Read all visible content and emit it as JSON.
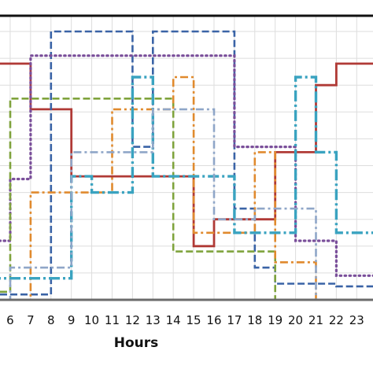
{
  "chart_data": {
    "type": "line",
    "step": "post",
    "xlabel": "Hours",
    "ylabel": "",
    "title": "",
    "grid": true,
    "x_ticks": [
      6,
      7,
      8,
      9,
      10,
      11,
      12,
      13,
      14,
      15,
      16,
      17,
      18,
      19,
      20,
      21,
      22,
      23
    ],
    "xlim": [
      5.5,
      23.8
    ],
    "ylim": [
      0,
      1
    ],
    "series": [
      {
        "color": "#b03a36",
        "style": "solid",
        "x": [
          5,
          7,
          7,
          9,
          9,
          15,
          15,
          16,
          16,
          19,
          19,
          21,
          21,
          22,
          22,
          24
        ],
        "y": [
          0.88,
          0.88,
          0.71,
          0.71,
          0.46,
          0.46,
          0.2,
          0.2,
          0.3,
          0.3,
          0.55,
          0.55,
          0.8,
          0.8,
          0.88,
          0.88
        ]
      },
      {
        "color": "#3a63a6",
        "style": "dashed",
        "x": [
          5,
          8,
          8,
          12,
          12,
          13,
          13,
          17,
          17,
          18,
          18,
          19,
          19,
          22,
          22,
          24
        ],
        "y": [
          0.02,
          0.02,
          1.0,
          1.0,
          0.57,
          0.57,
          1.0,
          1.0,
          0.34,
          0.34,
          0.12,
          0.12,
          0.06,
          0.06,
          0.05,
          0.05
        ]
      },
      {
        "color": "#7a4f9a",
        "style": "dotted",
        "x": [
          5,
          6,
          6,
          7,
          7,
          17,
          17,
          20,
          20,
          22,
          22,
          24
        ],
        "y": [
          0.22,
          0.22,
          0.45,
          0.45,
          0.91,
          0.91,
          0.57,
          0.57,
          0.22,
          0.22,
          0.09,
          0.09
        ]
      },
      {
        "color": "#7fa33c",
        "style": "dashed",
        "x": [
          5,
          6,
          6,
          14,
          14,
          19,
          19,
          24
        ],
        "y": [
          0.03,
          0.03,
          0.75,
          0.75,
          0.18,
          0.18,
          0.0,
          0.0
        ]
      },
      {
        "color": "#e08a2e",
        "style": "dashdot",
        "x": [
          5,
          7,
          7,
          11,
          11,
          14,
          14,
          15,
          15,
          18,
          18,
          19,
          19,
          21,
          21,
          24
        ],
        "y": [
          0.0,
          0.0,
          0.4,
          0.4,
          0.71,
          0.71,
          0.83,
          0.83,
          0.25,
          0.25,
          0.55,
          0.55,
          0.14,
          0.14,
          0.0,
          0.0
        ]
      },
      {
        "color": "#3aa3c0",
        "style": "longdashdot",
        "x": [
          5,
          9,
          9,
          10,
          10,
          12,
          12,
          13,
          13,
          17,
          17,
          20,
          20,
          21,
          21,
          22,
          22,
          24
        ],
        "y": [
          0.08,
          0.08,
          0.46,
          0.46,
          0.4,
          0.4,
          0.83,
          0.83,
          0.46,
          0.46,
          0.25,
          0.25,
          0.83,
          0.83,
          0.55,
          0.55,
          0.25,
          0.25
        ]
      },
      {
        "color": "#8fa6c8",
        "style": "dashdot",
        "x": [
          5,
          6,
          6,
          9,
          9,
          13,
          13,
          16,
          16,
          18,
          18,
          21,
          21,
          24
        ],
        "y": [
          0.0,
          0.0,
          0.12,
          0.12,
          0.55,
          0.55,
          0.71,
          0.71,
          0.3,
          0.3,
          0.34,
          0.34,
          0.0,
          0.0
        ]
      }
    ]
  }
}
